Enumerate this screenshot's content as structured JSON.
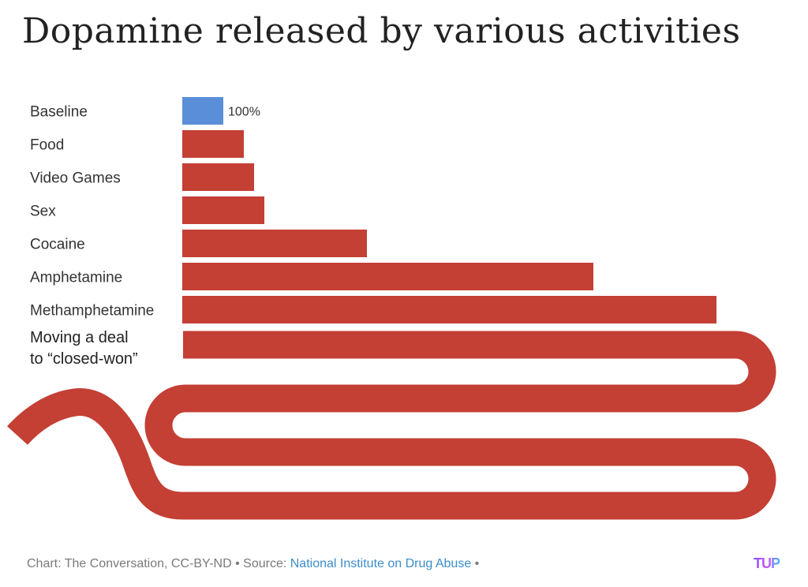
{
  "chart_data": {
    "type": "bar",
    "orientation": "horizontal",
    "title": "Dopamine released by various activities",
    "categories": [
      "Baseline",
      "Food",
      "Video Games",
      "Sex",
      "Cocaine",
      "Amphetamine",
      "Methamphetamine",
      "Moving a deal to “closed-won”"
    ],
    "label_lines": {
      "Moving a deal to “closed-won”": [
        "Moving a deal",
        "to “closed-won”"
      ]
    },
    "values": [
      100,
      150,
      175,
      200,
      450,
      1000,
      1300,
      null
    ],
    "value_labels": [
      "100%",
      "",
      "",
      "",
      "",
      "",
      "",
      ""
    ],
    "series": [
      {
        "values": [
          100,
          150,
          175,
          200,
          450,
          1000,
          1300,
          null
        ]
      }
    ],
    "colors": {
      "baseline": "#5b8ed8",
      "bar": "#c43f34"
    },
    "gridlines": false,
    "legend": "none",
    "annotation": "last bar drawn as an extremely long serpentine bar, off the chart"
  },
  "footer": {
    "credit": "Chart: The Conversation, CC-BY-ND • Source: ",
    "source_link": "National Institute on Drug Abuse",
    "trailing": " •"
  },
  "logo_text": "TUP"
}
